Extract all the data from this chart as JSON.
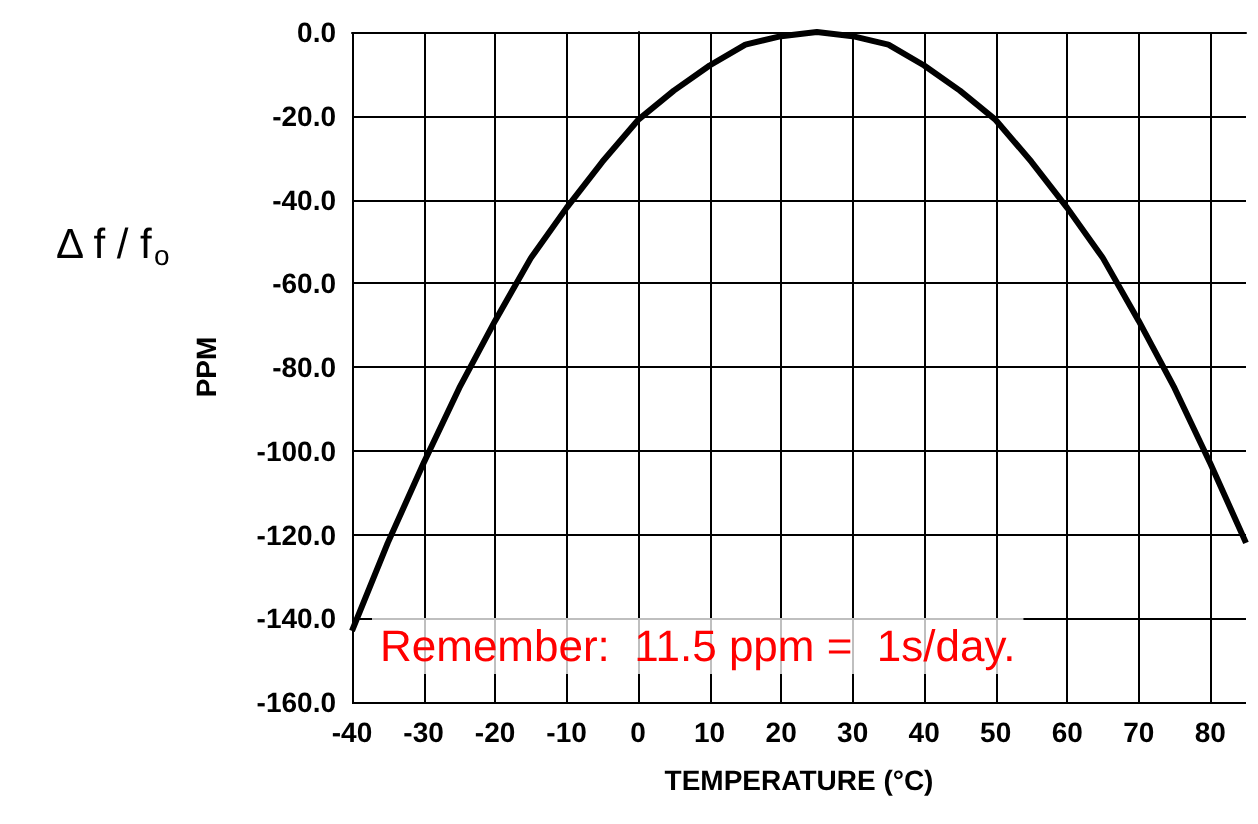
{
  "chart_data": {
    "type": "line",
    "xlabel": "TEMPERATURE (°C)",
    "ylabel": "PPM",
    "annotations": [
      "Δ f / f$_{o}$",
      "Remember:  11.5 ppm =  1s/day."
    ],
    "x": [
      -40,
      -35,
      -30,
      -25,
      -20,
      -15,
      -10,
      -5,
      0,
      5,
      10,
      15,
      20,
      25,
      30,
      35,
      40,
      45,
      50,
      55,
      60,
      65,
      70,
      75,
      80,
      85
    ],
    "series": [
      {
        "color": "#000000",
        "values": [
          -143,
          -122,
          -103,
          -85,
          -69,
          -54,
          -42,
          -31,
          -21,
          -14,
          -8,
          -3,
          -1,
          0,
          -1,
          -3,
          -8,
          -14,
          -21,
          -31,
          -42,
          -54,
          -69,
          -85,
          -103,
          -122
        ]
      }
    ],
    "xlim": [
      -40,
      85
    ],
    "xticks": [
      -40,
      -30,
      -20,
      -10,
      0,
      10,
      20,
      30,
      40,
      50,
      60,
      70,
      80
    ],
    "ylim": [
      -160,
      0
    ],
    "yticks": [
      {
        "value": 0,
        "label": "0.0"
      },
      {
        "value": -20,
        "label": "-20.0"
      },
      {
        "value": -40,
        "label": "-40.0"
      },
      {
        "value": -60,
        "label": "-60.0"
      },
      {
        "value": -80,
        "label": "-80.0"
      },
      {
        "value": -100,
        "label": "-100.0"
      },
      {
        "value": -120,
        "label": "-120.0"
      },
      {
        "value": -140,
        "label": "-140.0"
      },
      {
        "value": -160,
        "label": "-160.0"
      }
    ],
    "grid": true,
    "marker": "none",
    "line_style": "solid"
  }
}
